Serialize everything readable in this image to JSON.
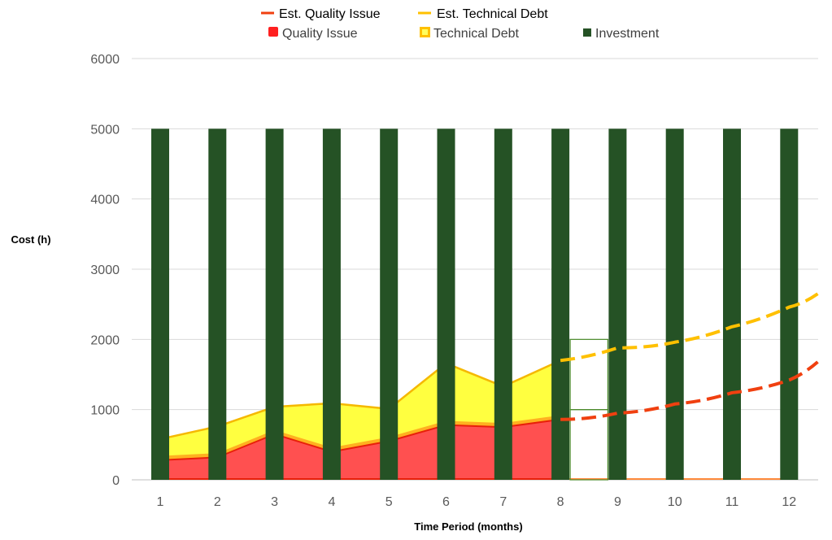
{
  "chart_data": {
    "type": "bar",
    "title": "",
    "xlabel": "Time Period (months)",
    "ylabel": "Cost (h)",
    "ylim": [
      0,
      6000
    ],
    "yticks": [
      0,
      1000,
      2000,
      3000,
      4000,
      5000,
      6000
    ],
    "grid": true,
    "legend_position": "top",
    "categories": [
      "1",
      "2",
      "3",
      "4",
      "5",
      "6",
      "7",
      "8",
      "9",
      "10",
      "11",
      "12"
    ],
    "series": [
      {
        "name": "Investment",
        "kind": "bar",
        "color": "#255225",
        "values": [
          5000,
          5000,
          5000,
          5000,
          5000,
          5000,
          5000,
          5000,
          5000,
          5000,
          5000,
          5000
        ]
      },
      {
        "name": "Technical Debt",
        "kind": "area",
        "color": "#FFFF40",
        "edge_color": "#F5B800",
        "values": [
          580,
          760,
          1040,
          1090,
          1010,
          1660,
          1330,
          1700,
          null,
          null,
          null,
          null
        ]
      },
      {
        "name": "Quality Issue",
        "kind": "area",
        "color": "#FF5050",
        "edge_color": "#E8200A",
        "values": [
          280,
          320,
          650,
          400,
          550,
          780,
          750,
          860,
          null,
          null,
          null,
          null
        ]
      },
      {
        "name": "Est. Technical Debt",
        "kind": "dashed-line",
        "color": "#FFC000",
        "x": [
          8,
          9,
          10,
          11,
          12,
          12.5
        ],
        "values": [
          1700,
          1880,
          1960,
          2180,
          2460,
          2650
        ]
      },
      {
        "name": "Est. Quality Issue",
        "kind": "dashed-line",
        "color": "#F04010",
        "x": [
          8,
          9,
          10,
          11,
          12,
          12.5
        ],
        "values": [
          860,
          950,
          1080,
          1240,
          1420,
          1680
        ]
      }
    ],
    "legend": {
      "row1": [
        {
          "label": "Est. Quality Issue",
          "color": "#F04010",
          "marker": "line"
        },
        {
          "label": "Est. Technical Debt",
          "color": "#FFC000",
          "marker": "line"
        }
      ],
      "row2": [
        {
          "label": "Quality Issue",
          "color": "#FF3030",
          "marker": "square"
        },
        {
          "label": "Technical Debt",
          "color": "#FFC000",
          "marker": "hollow-square"
        },
        {
          "label": "Investment",
          "color": "#255225",
          "marker": "square"
        }
      ]
    }
  }
}
